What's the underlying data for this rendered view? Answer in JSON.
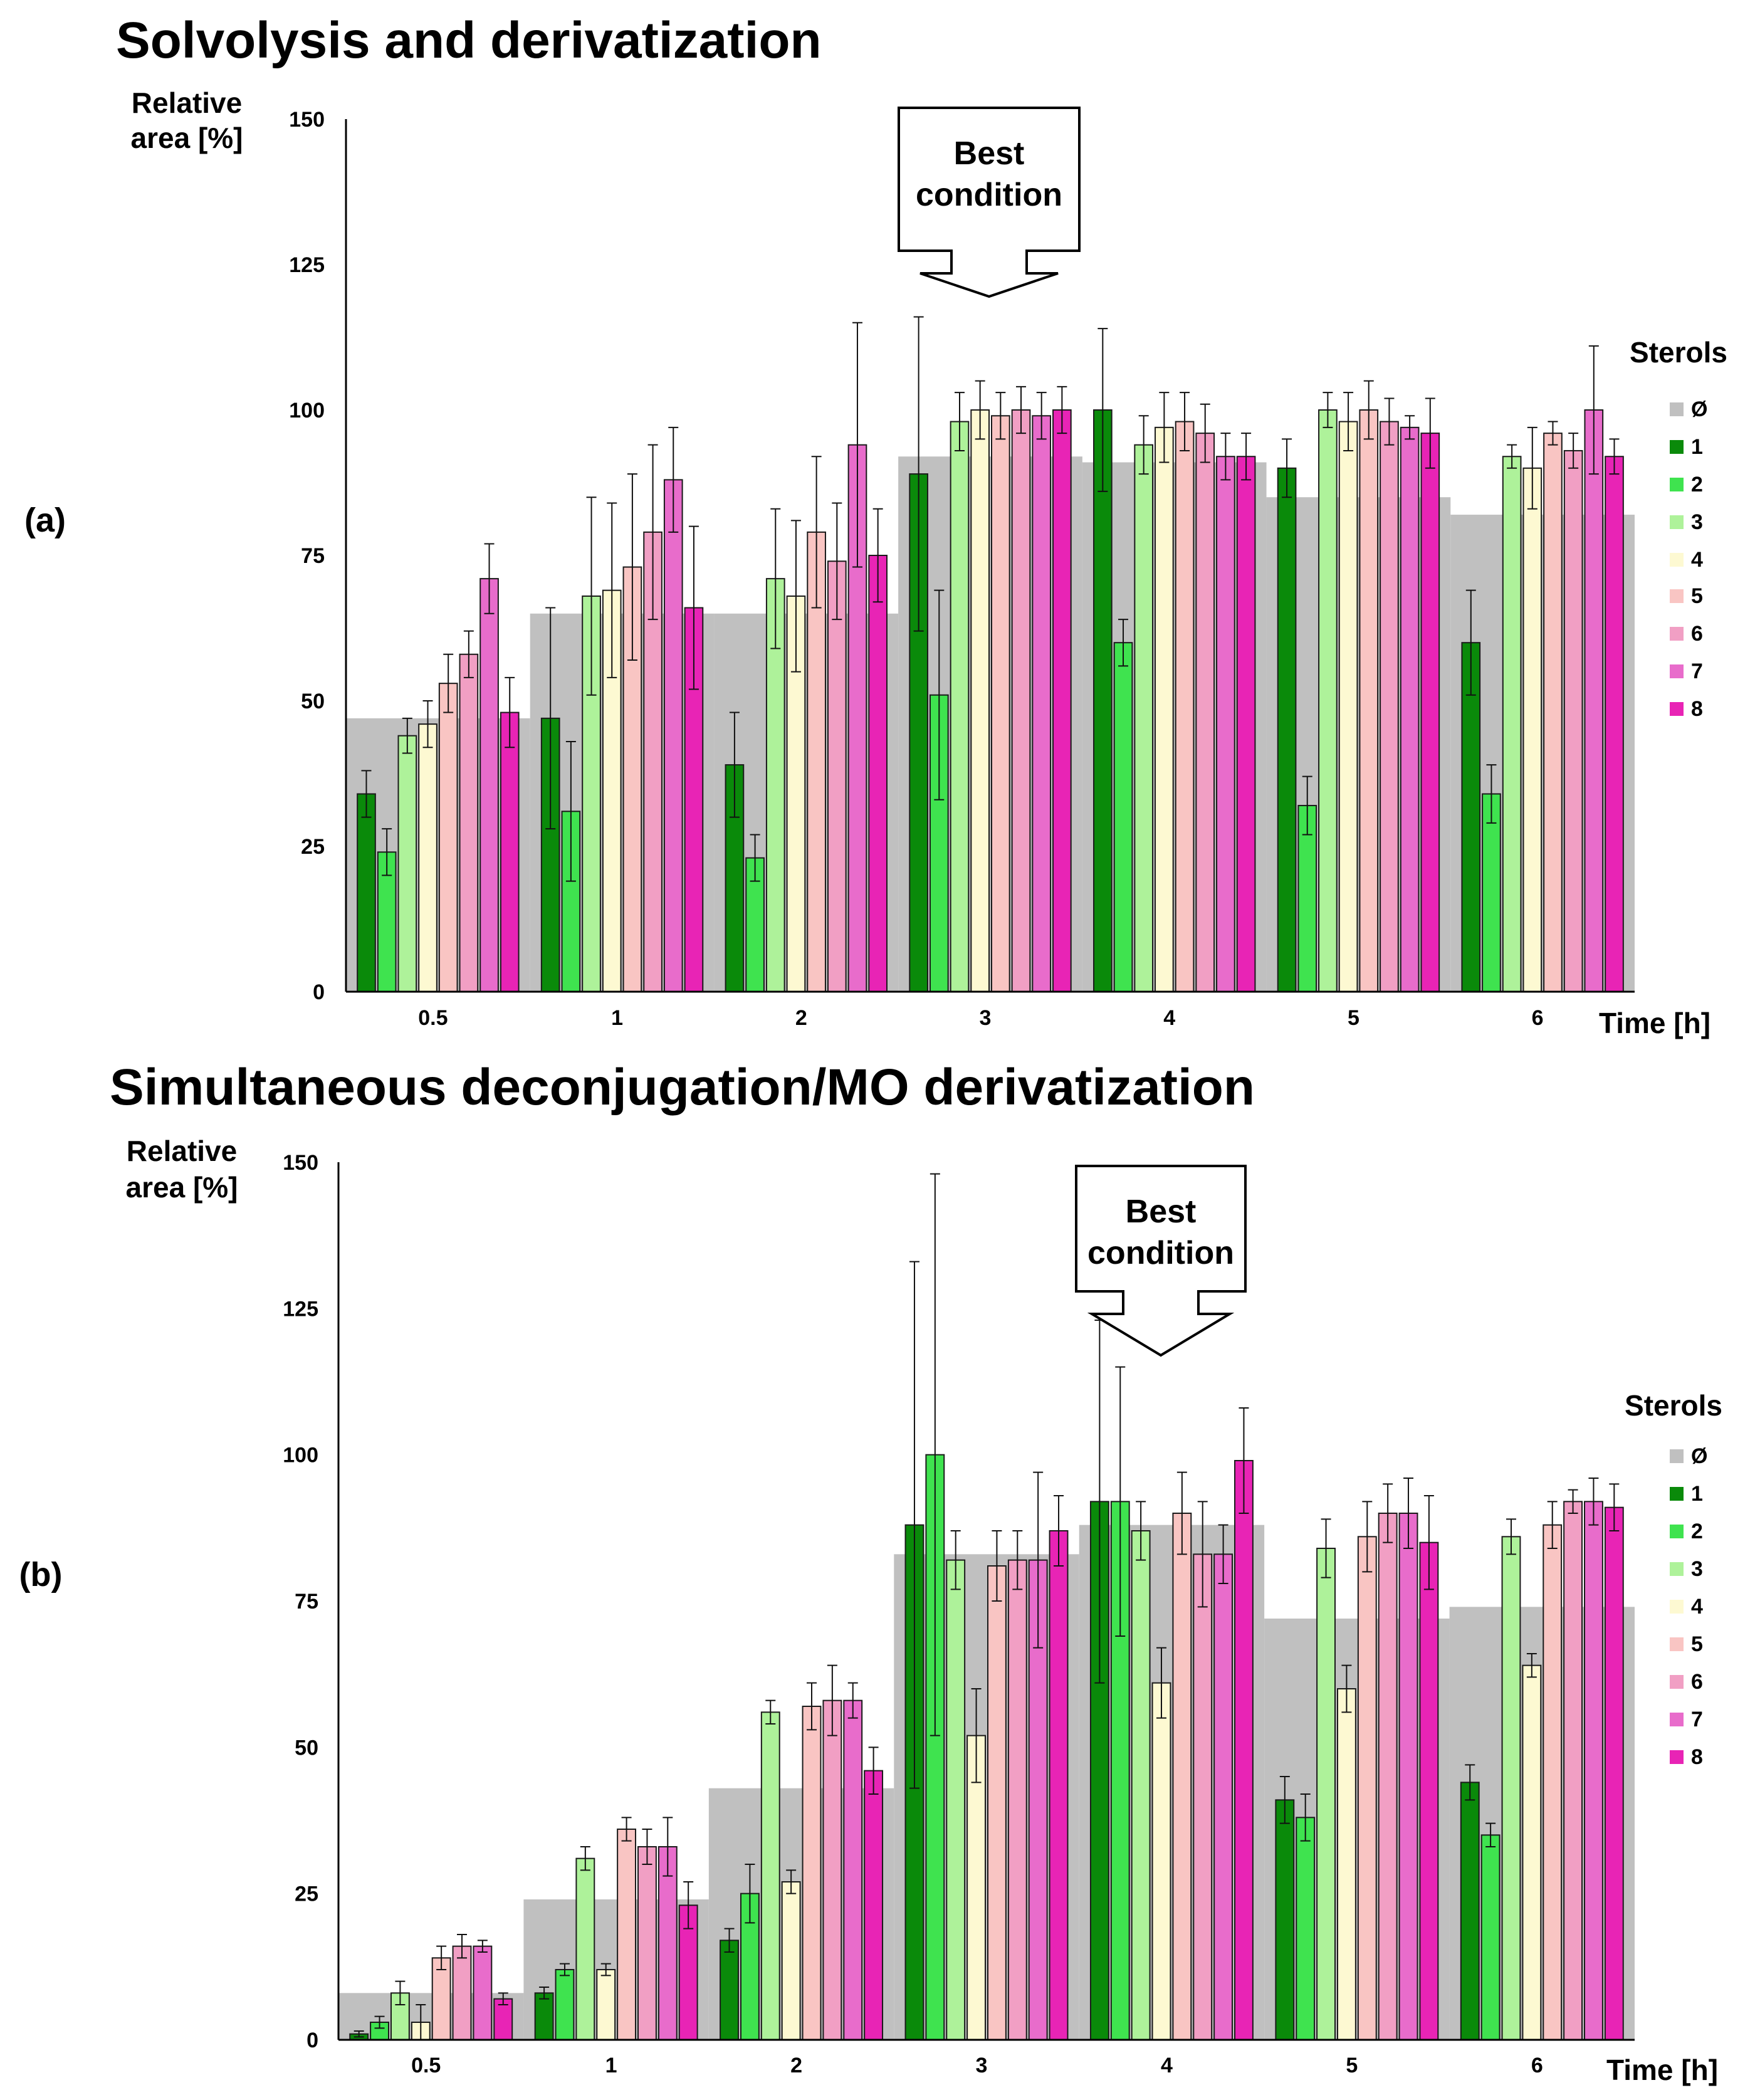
{
  "figure": {
    "panel_a_label": "(a)",
    "panel_b_label": "(b)",
    "best_condition_lines": [
      "Best",
      "condition"
    ]
  },
  "chart_data": [
    {
      "type": "bar",
      "title": "Solvolysis and derivatization",
      "ylabel_lines": [
        "Relative",
        "area [%]"
      ],
      "xlabel": "Time [h]",
      "legend_title": "Sterols",
      "ylim": [
        0,
        150
      ],
      "yticks": [
        0,
        25,
        50,
        75,
        100,
        125,
        150
      ],
      "categories": [
        "0.5",
        "1",
        "2",
        "3",
        "4",
        "5",
        "6"
      ],
      "background_series": {
        "name": "Ø",
        "color": "#c0c0c0",
        "values": [
          47,
          65,
          65,
          92,
          91,
          85,
          82
        ]
      },
      "best_condition_category": "3",
      "series": [
        {
          "name": "1",
          "color": "#0a8a0a",
          "values": [
            34,
            47,
            39,
            89,
            100,
            90,
            60
          ],
          "errors": [
            4,
            19,
            9,
            27,
            14,
            5,
            9
          ]
        },
        {
          "name": "2",
          "color": "#3fe34f",
          "values": [
            24,
            31,
            23,
            51,
            60,
            32,
            34
          ],
          "errors": [
            4,
            12,
            4,
            18,
            4,
            5,
            5
          ]
        },
        {
          "name": "3",
          "color": "#aef29a",
          "values": [
            44,
            68,
            71,
            98,
            94,
            100,
            92
          ],
          "errors": [
            3,
            17,
            12,
            5,
            5,
            3,
            2
          ]
        },
        {
          "name": "4",
          "color": "#fdf9d2",
          "values": [
            46,
            69,
            68,
            100,
            97,
            98,
            90
          ],
          "errors": [
            4,
            15,
            13,
            5,
            6,
            5,
            7
          ]
        },
        {
          "name": "5",
          "color": "#f9c5c3",
          "values": [
            53,
            73,
            79,
            99,
            98,
            100,
            96
          ],
          "errors": [
            5,
            16,
            13,
            4,
            5,
            5,
            2
          ]
        },
        {
          "name": "6",
          "color": "#f19fc4",
          "values": [
            58,
            79,
            74,
            100,
            96,
            98,
            93
          ],
          "errors": [
            4,
            15,
            10,
            4,
            5,
            4,
            3
          ]
        },
        {
          "name": "7",
          "color": "#e86ccb",
          "values": [
            71,
            88,
            94,
            99,
            92,
            97,
            100
          ],
          "errors": [
            6,
            9,
            21,
            4,
            4,
            2,
            11
          ]
        },
        {
          "name": "8",
          "color": "#e824b5",
          "values": [
            48,
            66,
            75,
            100,
            92,
            96,
            92
          ],
          "errors": [
            6,
            14,
            8,
            4,
            4,
            6,
            3
          ]
        }
      ]
    },
    {
      "type": "bar",
      "title": "Simultaneous deconjugation/MO derivatization",
      "ylabel_lines": [
        "Relative",
        "area [%]"
      ],
      "xlabel": "Time [h]",
      "legend_title": "Sterols",
      "ylim": [
        0,
        150
      ],
      "yticks": [
        0,
        25,
        50,
        75,
        100,
        125,
        150
      ],
      "categories": [
        "0.5",
        "1",
        "2",
        "3",
        "4",
        "5",
        "6"
      ],
      "background_series": {
        "name": "Ø",
        "color": "#c0c0c0",
        "values": [
          8,
          24,
          43,
          83,
          88,
          72,
          74
        ]
      },
      "best_condition_category": "4",
      "series": [
        {
          "name": "1",
          "color": "#0a8a0a",
          "values": [
            1,
            8,
            17,
            88,
            92,
            41,
            44
          ],
          "errors": [
            0.5,
            1,
            2,
            45,
            31,
            4,
            3
          ]
        },
        {
          "name": "2",
          "color": "#3fe34f",
          "values": [
            3,
            12,
            25,
            100,
            92,
            38,
            35
          ],
          "errors": [
            1,
            1,
            5,
            48,
            23,
            4,
            2
          ]
        },
        {
          "name": "3",
          "color": "#aef29a",
          "values": [
            8,
            31,
            56,
            82,
            87,
            84,
            86
          ],
          "errors": [
            2,
            2,
            2,
            5,
            5,
            5,
            3
          ]
        },
        {
          "name": "4",
          "color": "#fdf9d2",
          "values": [
            3,
            12,
            27,
            52,
            61,
            60,
            64
          ],
          "errors": [
            3,
            1,
            2,
            8,
            6,
            4,
            2
          ]
        },
        {
          "name": "5",
          "color": "#f9c5c3",
          "values": [
            14,
            36,
            57,
            81,
            90,
            86,
            88
          ],
          "errors": [
            2,
            2,
            4,
            6,
            7,
            6,
            4
          ]
        },
        {
          "name": "6",
          "color": "#f19fc4",
          "values": [
            16,
            33,
            58,
            82,
            83,
            90,
            92
          ],
          "errors": [
            2,
            3,
            6,
            5,
            9,
            5,
            2
          ]
        },
        {
          "name": "7",
          "color": "#e86ccb",
          "values": [
            16,
            33,
            58,
            82,
            83,
            90,
            92
          ],
          "errors": [
            1,
            5,
            3,
            15,
            5,
            6,
            4
          ]
        },
        {
          "name": "8",
          "color": "#e824b5",
          "values": [
            7,
            23,
            46,
            87,
            99,
            85,
            91
          ],
          "errors": [
            1,
            4,
            4,
            6,
            9,
            8,
            4
          ]
        }
      ]
    }
  ]
}
